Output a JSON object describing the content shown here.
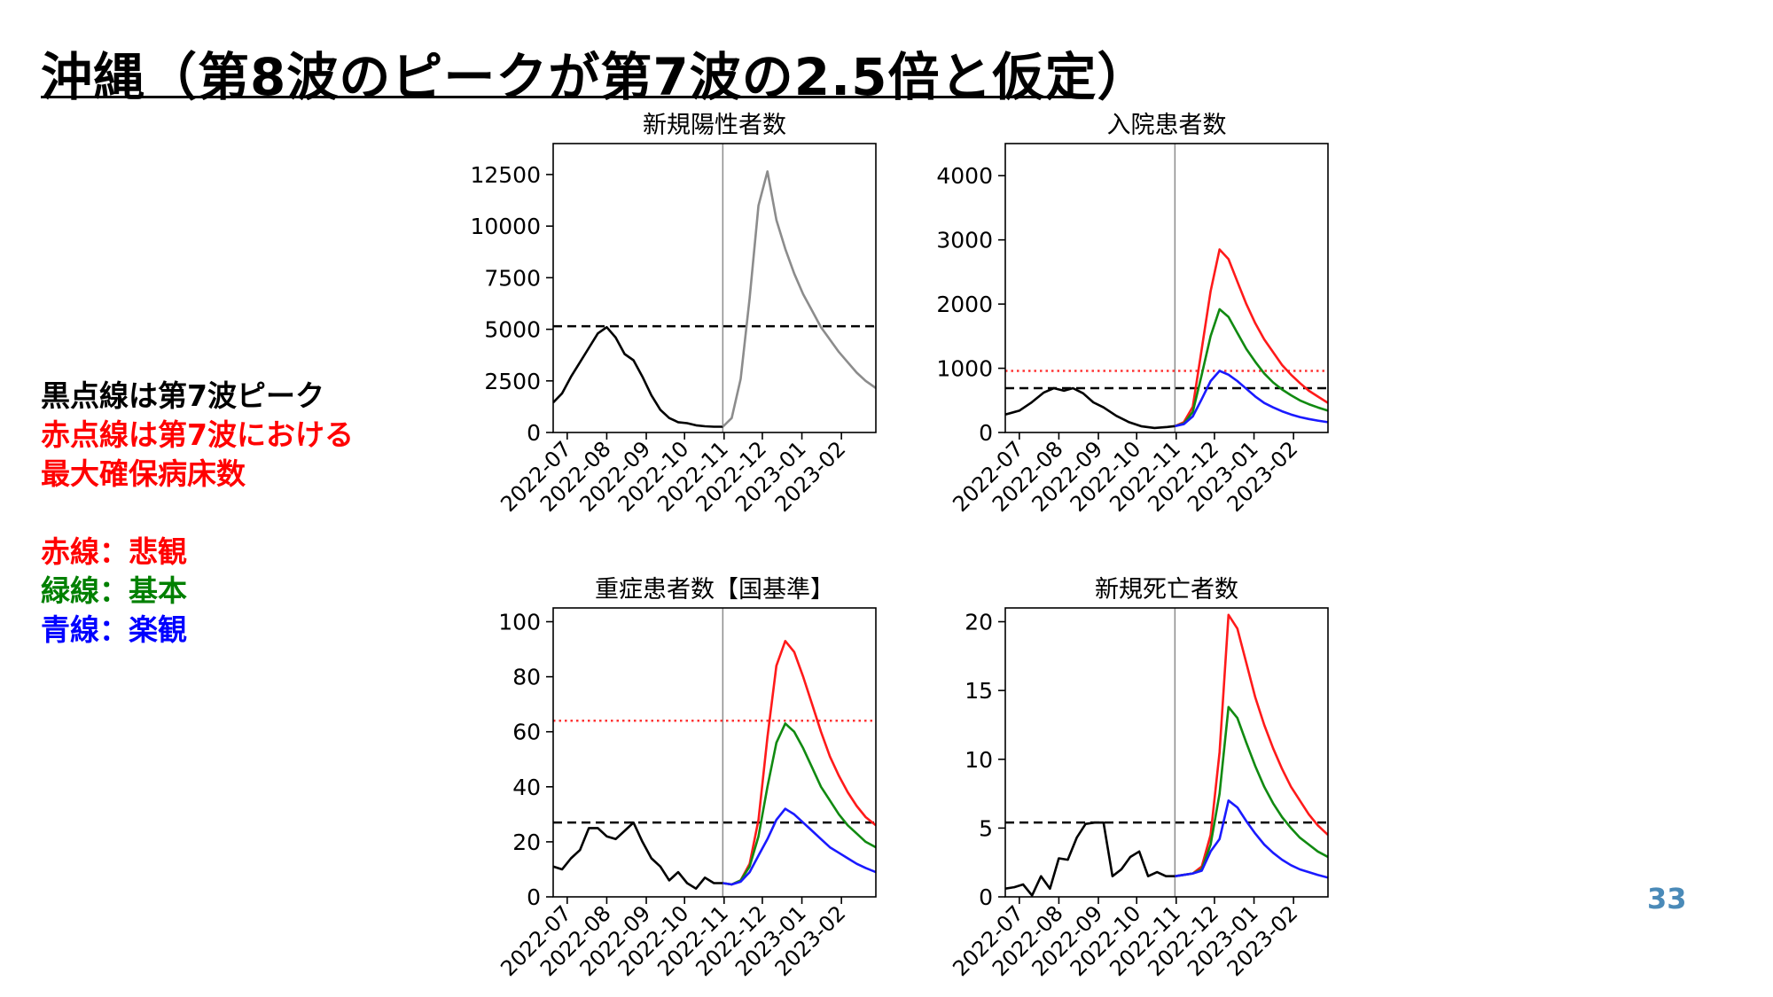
{
  "title": "沖縄（第8波のピークが第7波の2.5倍と仮定）",
  "page_number": "33",
  "notes": {
    "line1": "黒点線は第7波ピーク",
    "line2": "赤点線は第7波における",
    "line3": "最大確保病床数",
    "pessimistic": "赤線：悲観",
    "base": "緑線：基本",
    "optimistic": "青線：楽観"
  },
  "colors": {
    "observed": "#000000",
    "projection_single": "#8c8c8c",
    "pessimistic": "#ff1a1a",
    "base": "#118a11",
    "optimistic": "#1a1aff",
    "note_black": "#000000",
    "note_red": "#ff0000",
    "note_green": "#008000",
    "note_blue": "#0000ff"
  },
  "chart_data": [
    {
      "type": "line",
      "title": "新規陽性者数",
      "x_tick_labels": [
        "2022-07",
        "2022-08",
        "2022-09",
        "2022-10",
        "2022-11",
        "2022-12",
        "2023-01",
        "2023-02"
      ],
      "x_range": [
        "2022-06-20",
        "2023-02-28"
      ],
      "ylim": [
        0,
        14000
      ],
      "y_ticks": [
        0,
        2500,
        5000,
        7500,
        10000,
        12500
      ],
      "y_tick_labels": [
        "0",
        "2500",
        "5000",
        "7500",
        "10000",
        "12500"
      ],
      "forecast_start": "2022-10-31",
      "reference_lines": [
        {
          "kind": "black-dashed",
          "value": 5150
        }
      ],
      "series": [
        {
          "role": "observed",
          "x": [
            "2022-06-20",
            "2022-06-27",
            "2022-07-04",
            "2022-07-11",
            "2022-07-18",
            "2022-07-25",
            "2022-08-01",
            "2022-08-08",
            "2022-08-15",
            "2022-08-22",
            "2022-08-29",
            "2022-09-05",
            "2022-09-12",
            "2022-09-19",
            "2022-09-26",
            "2022-10-03",
            "2022-10-10",
            "2022-10-17",
            "2022-10-24",
            "2022-10-31"
          ],
          "y": [
            1450,
            1900,
            2700,
            3400,
            4100,
            4800,
            5100,
            4600,
            3800,
            3500,
            2700,
            1800,
            1100,
            700,
            500,
            450,
            350,
            300,
            280,
            280
          ]
        },
        {
          "role": "projection",
          "x": [
            "2022-10-31",
            "2022-11-07",
            "2022-11-14",
            "2022-11-21",
            "2022-11-28",
            "2022-12-05",
            "2022-12-12",
            "2022-12-19",
            "2022-12-26",
            "2023-01-02",
            "2023-01-09",
            "2023-01-16",
            "2023-01-23",
            "2023-01-30",
            "2023-02-06",
            "2023-02-13",
            "2023-02-20",
            "2023-02-28"
          ],
          "y": [
            280,
            700,
            2600,
            6500,
            11000,
            12650,
            10300,
            8900,
            7700,
            6700,
            5900,
            5100,
            4500,
            3900,
            3400,
            2900,
            2500,
            2150
          ]
        }
      ]
    },
    {
      "type": "line",
      "title": "入院患者数",
      "x_tick_labels": [
        "2022-07",
        "2022-08",
        "2022-09",
        "2022-10",
        "2022-11",
        "2022-12",
        "2023-01",
        "2023-02"
      ],
      "x_range": [
        "2022-06-20",
        "2023-02-28"
      ],
      "ylim": [
        0,
        4500
      ],
      "y_ticks": [
        0,
        1000,
        2000,
        3000,
        4000
      ],
      "y_tick_labels": [
        "0",
        "1000",
        "2000",
        "3000",
        "4000"
      ],
      "forecast_start": "2022-10-31",
      "reference_lines": [
        {
          "kind": "black-dashed",
          "value": 690
        },
        {
          "kind": "red-dotted",
          "value": 960
        }
      ],
      "series": [
        {
          "role": "observed",
          "x": [
            "2022-06-20",
            "2022-07-01",
            "2022-07-10",
            "2022-07-20",
            "2022-07-28",
            "2022-08-05",
            "2022-08-12",
            "2022-08-20",
            "2022-08-28",
            "2022-09-05",
            "2022-09-15",
            "2022-09-25",
            "2022-10-05",
            "2022-10-15",
            "2022-10-25",
            "2022-10-31"
          ],
          "y": [
            280,
            340,
            460,
            620,
            690,
            650,
            690,
            610,
            470,
            390,
            260,
            160,
            95,
            70,
            85,
            100
          ]
        },
        {
          "role": "pessimistic",
          "x": [
            "2022-10-31",
            "2022-11-07",
            "2022-11-14",
            "2022-11-21",
            "2022-11-28",
            "2022-12-05",
            "2022-12-12",
            "2022-12-19",
            "2022-12-26",
            "2023-01-02",
            "2023-01-09",
            "2023-01-16",
            "2023-01-23",
            "2023-01-30",
            "2023-02-06",
            "2023-02-13",
            "2023-02-20",
            "2023-02-28"
          ],
          "y": [
            100,
            160,
            400,
            1300,
            2200,
            2850,
            2700,
            2350,
            2000,
            1700,
            1450,
            1250,
            1050,
            900,
            770,
            650,
            560,
            460
          ]
        },
        {
          "role": "base",
          "x": [
            "2022-10-31",
            "2022-11-07",
            "2022-11-14",
            "2022-11-21",
            "2022-11-28",
            "2022-12-05",
            "2022-12-12",
            "2022-12-19",
            "2022-12-26",
            "2023-01-02",
            "2023-01-09",
            "2023-01-16",
            "2023-01-23",
            "2023-01-30",
            "2023-02-06",
            "2023-02-13",
            "2023-02-20",
            "2023-02-28"
          ],
          "y": [
            100,
            140,
            320,
            900,
            1500,
            1920,
            1800,
            1550,
            1300,
            1100,
            920,
            780,
            670,
            580,
            500,
            440,
            390,
            340
          ]
        },
        {
          "role": "optimistic",
          "x": [
            "2022-10-31",
            "2022-11-07",
            "2022-11-14",
            "2022-11-21",
            "2022-11-28",
            "2022-12-05",
            "2022-12-12",
            "2022-12-19",
            "2022-12-26",
            "2023-01-02",
            "2023-01-09",
            "2023-01-16",
            "2023-01-23",
            "2023-01-30",
            "2023-02-06",
            "2023-02-13",
            "2023-02-20",
            "2023-02-28"
          ],
          "y": [
            100,
            130,
            250,
            520,
            800,
            960,
            900,
            800,
            680,
            560,
            460,
            390,
            330,
            280,
            240,
            210,
            185,
            160
          ]
        }
      ]
    },
    {
      "type": "line",
      "title": "重症患者数【国基準】",
      "x_tick_labels": [
        "2022-07",
        "2022-08",
        "2022-09",
        "2022-10",
        "2022-11",
        "2022-12",
        "2023-01",
        "2023-02"
      ],
      "x_range": [
        "2022-06-20",
        "2023-02-28"
      ],
      "ylim": [
        0,
        105
      ],
      "y_ticks": [
        0,
        20,
        40,
        60,
        80,
        100
      ],
      "y_tick_labels": [
        "0",
        "20",
        "40",
        "60",
        "80",
        "100"
      ],
      "forecast_start": "2022-10-31",
      "reference_lines": [
        {
          "kind": "black-dashed",
          "value": 27
        },
        {
          "kind": "red-dotted",
          "value": 64
        }
      ],
      "series": [
        {
          "role": "observed",
          "x": [
            "2022-06-20",
            "2022-06-27",
            "2022-07-04",
            "2022-07-11",
            "2022-07-18",
            "2022-07-25",
            "2022-08-01",
            "2022-08-08",
            "2022-08-15",
            "2022-08-22",
            "2022-08-29",
            "2022-09-05",
            "2022-09-12",
            "2022-09-19",
            "2022-09-26",
            "2022-10-03",
            "2022-10-10",
            "2022-10-17",
            "2022-10-24",
            "2022-10-31"
          ],
          "y": [
            11,
            10,
            14,
            17,
            25,
            25,
            22,
            21,
            24,
            27,
            20,
            14,
            11,
            6,
            9,
            5,
            3,
            7,
            5,
            5
          ]
        },
        {
          "role": "pessimistic",
          "x": [
            "2022-10-31",
            "2022-11-07",
            "2022-11-14",
            "2022-11-21",
            "2022-11-28",
            "2022-12-05",
            "2022-12-12",
            "2022-12-19",
            "2022-12-26",
            "2023-01-02",
            "2023-01-09",
            "2023-01-16",
            "2023-01-23",
            "2023-01-30",
            "2023-02-06",
            "2023-02-13",
            "2023-02-20",
            "2023-02-28"
          ],
          "y": [
            5,
            4.5,
            6,
            12,
            28,
            58,
            84,
            93,
            89,
            80,
            70,
            60,
            51,
            44,
            38,
            33,
            29,
            26
          ]
        },
        {
          "role": "base",
          "x": [
            "2022-10-31",
            "2022-11-07",
            "2022-11-14",
            "2022-11-21",
            "2022-11-28",
            "2022-12-05",
            "2022-12-12",
            "2022-12-19",
            "2022-12-26",
            "2023-01-02",
            "2023-01-09",
            "2023-01-16",
            "2023-01-23",
            "2023-01-30",
            "2023-02-06",
            "2023-02-13",
            "2023-02-20",
            "2023-02-28"
          ],
          "y": [
            5,
            4.5,
            6,
            11,
            22,
            40,
            56,
            63,
            60,
            54,
            47,
            40,
            35,
            30,
            26,
            23,
            20,
            18
          ]
        },
        {
          "role": "optimistic",
          "x": [
            "2022-10-31",
            "2022-11-07",
            "2022-11-14",
            "2022-11-21",
            "2022-11-28",
            "2022-12-05",
            "2022-12-12",
            "2022-12-19",
            "2022-12-26",
            "2023-01-02",
            "2023-01-09",
            "2023-01-16",
            "2023-01-23",
            "2023-01-30",
            "2023-02-06",
            "2023-02-13",
            "2023-02-20",
            "2023-02-28"
          ],
          "y": [
            5,
            4.5,
            5.5,
            9,
            15,
            21,
            28,
            32,
            30,
            27,
            24,
            21,
            18,
            16,
            14,
            12,
            10.5,
            9
          ]
        }
      ]
    },
    {
      "type": "line",
      "title": "新規死亡者数",
      "x_tick_labels": [
        "2022-07",
        "2022-08",
        "2022-09",
        "2022-10",
        "2022-11",
        "2022-12",
        "2023-01",
        "2023-02"
      ],
      "x_range": [
        "2022-06-20",
        "2023-02-28"
      ],
      "ylim": [
        0,
        21
      ],
      "y_ticks": [
        0,
        5,
        10,
        15,
        20
      ],
      "y_tick_labels": [
        "0",
        "5",
        "10",
        "15",
        "20"
      ],
      "forecast_start": "2022-10-31",
      "reference_lines": [
        {
          "kind": "black-dashed",
          "value": 5.4
        }
      ],
      "series": [
        {
          "role": "observed",
          "x": [
            "2022-06-20",
            "2022-06-27",
            "2022-07-04",
            "2022-07-11",
            "2022-07-18",
            "2022-07-25",
            "2022-08-01",
            "2022-08-08",
            "2022-08-15",
            "2022-08-22",
            "2022-08-29",
            "2022-09-05",
            "2022-09-12",
            "2022-09-19",
            "2022-09-26",
            "2022-10-03",
            "2022-10-10",
            "2022-10-17",
            "2022-10-24",
            "2022-10-31"
          ],
          "y": [
            0.6,
            0.7,
            0.9,
            0.1,
            1.5,
            0.6,
            2.8,
            2.7,
            4.3,
            5.3,
            5.4,
            5.4,
            1.5,
            2.0,
            2.9,
            3.3,
            1.5,
            1.8,
            1.5,
            1.5
          ]
        },
        {
          "role": "pessimistic",
          "x": [
            "2022-10-31",
            "2022-11-07",
            "2022-11-14",
            "2022-11-21",
            "2022-11-28",
            "2022-12-05",
            "2022-12-12",
            "2022-12-19",
            "2022-12-26",
            "2023-01-02",
            "2023-01-09",
            "2023-01-16",
            "2023-01-23",
            "2023-01-30",
            "2023-02-06",
            "2023-02-13",
            "2023-02-20",
            "2023-02-28"
          ],
          "y": [
            1.5,
            1.6,
            1.7,
            2.2,
            4.5,
            10.5,
            20.5,
            19.5,
            17.0,
            14.5,
            12.5,
            10.8,
            9.3,
            8.0,
            7.0,
            6.0,
            5.2,
            4.5
          ]
        },
        {
          "role": "base",
          "x": [
            "2022-10-31",
            "2022-11-07",
            "2022-11-14",
            "2022-11-21",
            "2022-11-28",
            "2022-12-05",
            "2022-12-12",
            "2022-12-19",
            "2022-12-26",
            "2023-01-02",
            "2023-01-09",
            "2023-01-16",
            "2023-01-23",
            "2023-01-30",
            "2023-02-06",
            "2023-02-13",
            "2023-02-20",
            "2023-02-28"
          ],
          "y": [
            1.5,
            1.6,
            1.7,
            2.0,
            3.8,
            7.5,
            13.8,
            13.0,
            11.2,
            9.5,
            8.0,
            6.8,
            5.8,
            5.0,
            4.3,
            3.8,
            3.3,
            2.9
          ]
        },
        {
          "role": "optimistic",
          "x": [
            "2022-10-31",
            "2022-11-07",
            "2022-11-14",
            "2022-11-21",
            "2022-11-28",
            "2022-12-05",
            "2022-12-12",
            "2022-12-19",
            "2022-12-26",
            "2023-01-02",
            "2023-01-09",
            "2023-01-16",
            "2023-01-23",
            "2023-01-30",
            "2023-02-06",
            "2023-02-13",
            "2023-02-20",
            "2023-02-28"
          ],
          "y": [
            1.5,
            1.6,
            1.7,
            1.9,
            3.3,
            4.2,
            7.0,
            6.5,
            5.5,
            4.6,
            3.8,
            3.2,
            2.7,
            2.3,
            2.0,
            1.8,
            1.6,
            1.4
          ]
        }
      ]
    }
  ]
}
